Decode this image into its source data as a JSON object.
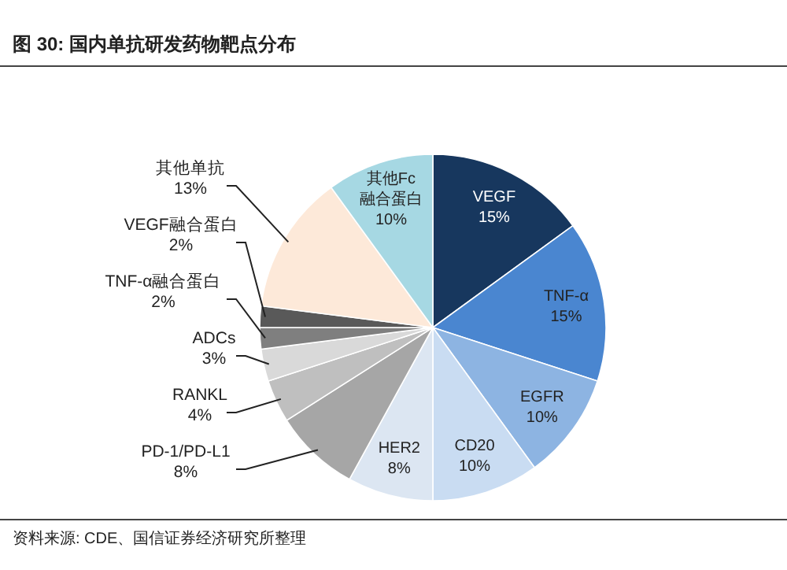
{
  "chart_data": {
    "type": "pie",
    "title": "图 30:  国内单抗研发药物靶点分布",
    "categories": [
      "VEGF",
      "TNF-α",
      "EGFR",
      "CD20",
      "HER2",
      "PD-1/PD-L1",
      "RANKL",
      "ADCs",
      "TNF-α融合蛋白",
      "VEGF融合蛋白",
      "其他单抗",
      "其他Fc融合蛋白"
    ],
    "values": [
      15,
      15,
      10,
      10,
      8,
      8,
      4,
      3,
      2,
      2,
      13,
      10
    ],
    "value_labels": [
      "15%",
      "15%",
      "10%",
      "10%",
      "8%",
      "8%",
      "4%",
      "3%",
      "2%",
      "2%",
      "13%",
      "10%"
    ],
    "colors": [
      "#17375e",
      "#4a86d0",
      "#8db4e2",
      "#c9dcf2",
      "#dce6f2",
      "#a6a6a6",
      "#bfbfbf",
      "#d9d9d9",
      "#7f7f7f",
      "#595959",
      "#fde9d9",
      "#a6d8e3"
    ],
    "annotations": [
      "资料来源: CDE、国信证券经济研究所整理"
    ]
  }
}
